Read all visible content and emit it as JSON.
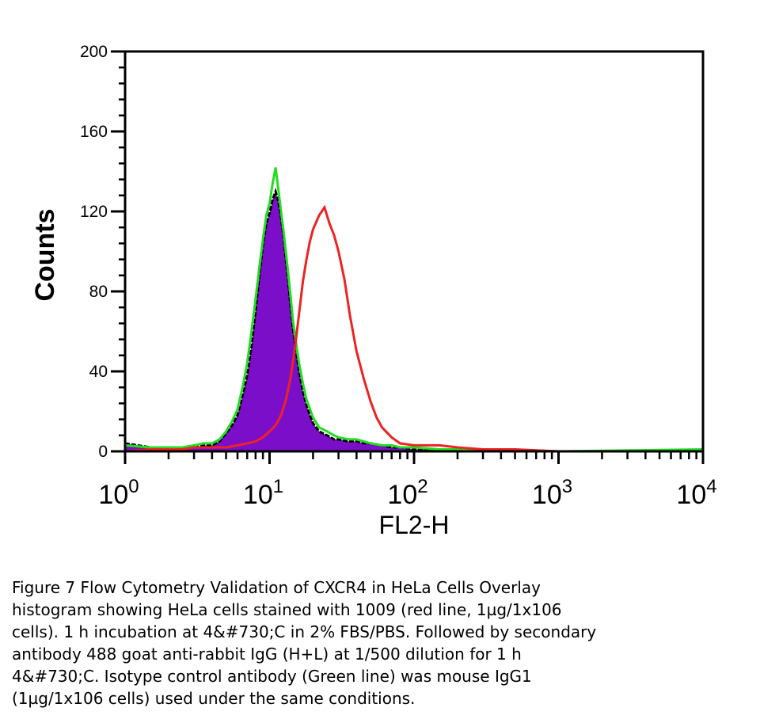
{
  "chart_data": {
    "type": "area",
    "xlabel": "FL2-H",
    "ylabel": "Counts",
    "x_scale": "log",
    "xlim": [
      1,
      10000
    ],
    "ylim": [
      0,
      200
    ],
    "x_ticks": [
      {
        "base": "10",
        "exp": "0"
      },
      {
        "base": "10",
        "exp": "1"
      },
      {
        "base": "10",
        "exp": "2"
      },
      {
        "base": "10",
        "exp": "3"
      },
      {
        "base": "10",
        "exp": "4"
      }
    ],
    "y_ticks": [
      "0",
      "40",
      "80",
      "120",
      "160",
      "200"
    ],
    "series": [
      {
        "style": "filled purple with black outline",
        "color": "#7b0fc9",
        "x": [
          1,
          1.5,
          2,
          2.5,
          3,
          3.5,
          4,
          4.5,
          5,
          5.5,
          6,
          6.5,
          7,
          7.5,
          8,
          8.5,
          9,
          9.5,
          10,
          10.5,
          11,
          11.5,
          12,
          12.5,
          13,
          13.5,
          14,
          14.5,
          15,
          16,
          17,
          18,
          20,
          22,
          25,
          28,
          30,
          35,
          40,
          45,
          50,
          60,
          70,
          80,
          100,
          150,
          200,
          500,
          1000,
          10000
        ],
        "y": [
          4,
          2,
          2,
          1,
          2,
          3,
          3,
          5,
          9,
          13,
          18,
          28,
          38,
          53,
          70,
          88,
          103,
          114,
          119,
          126,
          130,
          125,
          117,
          107,
          95,
          84,
          72,
          62,
          54,
          40,
          30,
          23,
          14,
          10,
          8,
          6,
          6,
          5,
          5,
          4,
          4,
          3,
          2,
          2,
          1,
          1,
          1,
          0.5,
          0,
          0
        ]
      },
      {
        "style": "line",
        "color": "#22dd22",
        "x": [
          1,
          1.5,
          2,
          2.5,
          3,
          3.5,
          4,
          4.5,
          5,
          5.5,
          6,
          6.5,
          7,
          7.5,
          8,
          8.5,
          9,
          9.5,
          10,
          10.5,
          11,
          11.5,
          12,
          12.5,
          13,
          13.5,
          14,
          14.5,
          15,
          16,
          17,
          18,
          20,
          22,
          25,
          28,
          30,
          35,
          40,
          45,
          50,
          60,
          70,
          80,
          100,
          150,
          200,
          500,
          1000,
          10000
        ],
        "y": [
          3,
          2,
          2,
          2,
          3,
          4,
          4,
          6,
          10,
          15,
          21,
          32,
          44,
          60,
          76,
          92,
          106,
          118,
          124,
          134,
          142,
          131,
          120,
          110,
          99,
          88,
          77,
          66,
          58,
          44,
          34,
          26,
          17,
          12,
          10,
          8,
          7,
          6,
          6,
          5,
          4,
          3,
          3,
          2,
          2,
          1,
          1,
          0.5,
          0,
          1
        ]
      },
      {
        "style": "line",
        "color": "#ee2222",
        "x": [
          1,
          1.5,
          2,
          2.5,
          3,
          3.5,
          4,
          5,
          6,
          7,
          8,
          9,
          10,
          11,
          12,
          13,
          14,
          15,
          16,
          17,
          18,
          19,
          20,
          22,
          24,
          26,
          28,
          30,
          33,
          36,
          40,
          45,
          50,
          55,
          60,
          70,
          80,
          100,
          120,
          150,
          200,
          300,
          500,
          1000,
          10000
        ],
        "y": [
          0,
          1,
          1,
          1,
          2,
          2,
          2,
          2,
          3,
          4,
          5,
          7,
          10,
          13,
          18,
          26,
          37,
          52,
          69,
          85,
          96,
          105,
          111,
          118,
          122,
          114,
          108,
          100,
          86,
          68,
          50,
          36,
          25,
          17,
          12,
          7,
          4,
          3,
          3,
          3,
          2,
          1,
          1,
          0,
          0
        ]
      }
    ]
  },
  "caption": {
    "lines": [
      "Figure 7 Flow Cytometry Validation of CXCR4 in HeLa Cells Overlay",
      "histogram showing HeLa cells stained with 1009 (red line, 1µg/1x106",
      "cells). 1 h incubation at 4&#730;C in 2% FBS/PBS. Followed by secondary",
      "antibody 488 goat anti-rabbit IgG (H+L) at 1/500 dilution for 1 h",
      "4&#730;C. Isotype control antibody (Green line) was mouse IgG1",
      "(1µg/1x106 cells) used under the same conditions."
    ]
  }
}
